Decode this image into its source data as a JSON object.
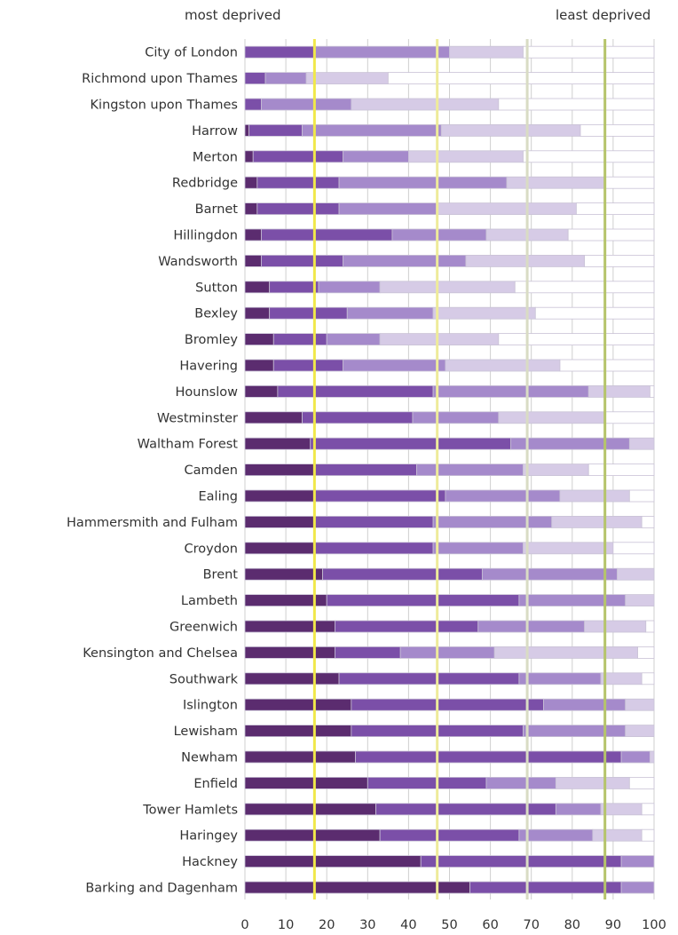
{
  "header": {
    "left_label": "most deprived",
    "right_label": "least deprived"
  },
  "colors": {
    "segments": [
      "#5b2c6f",
      "#7b4fa8",
      "#a58acb",
      "#d6cbe6",
      "#ffffff"
    ],
    "segment_stroke": "#c9c2d6",
    "grid": "#cfcfcf",
    "reference_lines": [
      "#f0e84a",
      "#eeeb9a",
      "#d9dcc4",
      "#b5c46a"
    ],
    "text": "#333333"
  },
  "chart_data": {
    "type": "bar",
    "orientation": "horizontal",
    "stacked": "cumulative",
    "x_ticks": [
      0,
      10,
      20,
      30,
      40,
      50,
      60,
      70,
      80,
      90,
      100
    ],
    "xlim": [
      0,
      100
    ],
    "grid": true,
    "reference_lines": [
      17,
      47,
      69,
      88
    ],
    "categories": [
      "City of London",
      "Richmond upon Thames",
      "Kingston upon Thames",
      "Harrow",
      "Merton",
      "Redbridge",
      "Barnet",
      "Hillingdon",
      "Wandsworth",
      "Sutton",
      "Bexley",
      "Bromley",
      "Havering",
      "Hounslow",
      "Westminster",
      "Waltham Forest",
      "Camden",
      "Ealing",
      "Hammersmith and Fulham",
      "Croydon",
      "Brent",
      "Lambeth",
      "Greenwich",
      "Kensington and Chelsea",
      "Southwark",
      "Islington",
      "Lewisham",
      "Newham",
      "Enfield",
      "Tower Hamlets",
      "Haringey",
      "Hackney",
      "Barking and Dagenham"
    ],
    "cumulative_bounds": [
      [
        0,
        17,
        50,
        68,
        100
      ],
      [
        0,
        5,
        15,
        35,
        100
      ],
      [
        0,
        4,
        26,
        62,
        100
      ],
      [
        1,
        14,
        48,
        82,
        100
      ],
      [
        2,
        24,
        40,
        68,
        100
      ],
      [
        3,
        23,
        64,
        88,
        100
      ],
      [
        3,
        23,
        47,
        81,
        100
      ],
      [
        4,
        36,
        59,
        79,
        100
      ],
      [
        4,
        24,
        54,
        83,
        100
      ],
      [
        6,
        18,
        33,
        66,
        100
      ],
      [
        6,
        25,
        46,
        71,
        100
      ],
      [
        7,
        20,
        33,
        62,
        100
      ],
      [
        7,
        24,
        49,
        77,
        100
      ],
      [
        8,
        46,
        84,
        99,
        100
      ],
      [
        14,
        41,
        62,
        88,
        100
      ],
      [
        16,
        65,
        94,
        100,
        100
      ],
      [
        17,
        42,
        68,
        84,
        100
      ],
      [
        17,
        49,
        77,
        94,
        100
      ],
      [
        17,
        46,
        75,
        97,
        100
      ],
      [
        17,
        46,
        68,
        90,
        100
      ],
      [
        19,
        58,
        91,
        100,
        100
      ],
      [
        20,
        67,
        93,
        100,
        100
      ],
      [
        22,
        57,
        83,
        98,
        100
      ],
      [
        22,
        38,
        61,
        96,
        100
      ],
      [
        23,
        67,
        87,
        97,
        100
      ],
      [
        26,
        73,
        93,
        100,
        100
      ],
      [
        26,
        68,
        93,
        100,
        100
      ],
      [
        27,
        92,
        99,
        100,
        100
      ],
      [
        30,
        59,
        76,
        94,
        100
      ],
      [
        32,
        76,
        87,
        97,
        100
      ],
      [
        33,
        67,
        85,
        97,
        100
      ],
      [
        43,
        92,
        100,
        100,
        100
      ],
      [
        55,
        92,
        100,
        100,
        100
      ]
    ]
  }
}
